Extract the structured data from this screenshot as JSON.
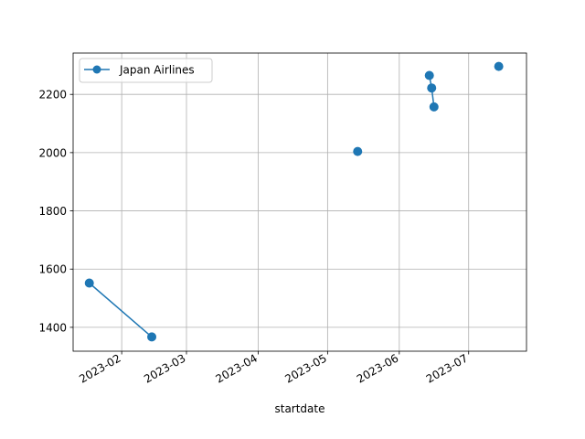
{
  "chart_data": {
    "type": "line",
    "title": "",
    "xlabel": "startdate",
    "ylabel": "",
    "x_axis_type": "date",
    "xlim": [
      "2023-01-11",
      "2023-07-26"
    ],
    "ylim": [
      1318,
      2342
    ],
    "x_ticks": [
      "2023-02-01",
      "2023-03-01",
      "2023-04-01",
      "2023-05-01",
      "2023-06-01",
      "2023-07-01"
    ],
    "x_tick_labels": [
      "2023-02",
      "2023-03",
      "2023-04",
      "2023-05",
      "2023-06",
      "2023-07"
    ],
    "y_ticks": [
      1400,
      1600,
      1800,
      2000,
      2200
    ],
    "y_tick_labels": [
      "1400",
      "1600",
      "1800",
      "2000",
      "2200"
    ],
    "grid": true,
    "legend_position": "upper-left",
    "series": [
      {
        "name": "Japan Airlines",
        "color": "#1f77b4",
        "marker": "circle",
        "points": [
          {
            "x": "2023-01-18",
            "y": 1552
          },
          {
            "x": "2023-02-14",
            "y": 1367
          },
          {
            "x": null,
            "y": null
          },
          {
            "x": "2023-05-14",
            "y": 2004
          },
          {
            "x": null,
            "y": null
          },
          {
            "x": "2023-06-14",
            "y": 2265
          },
          {
            "x": "2023-06-15",
            "y": 2222
          },
          {
            "x": "2023-06-16",
            "y": 2157
          },
          {
            "x": null,
            "y": null
          },
          {
            "x": "2023-07-14",
            "y": 2296
          }
        ]
      }
    ]
  }
}
